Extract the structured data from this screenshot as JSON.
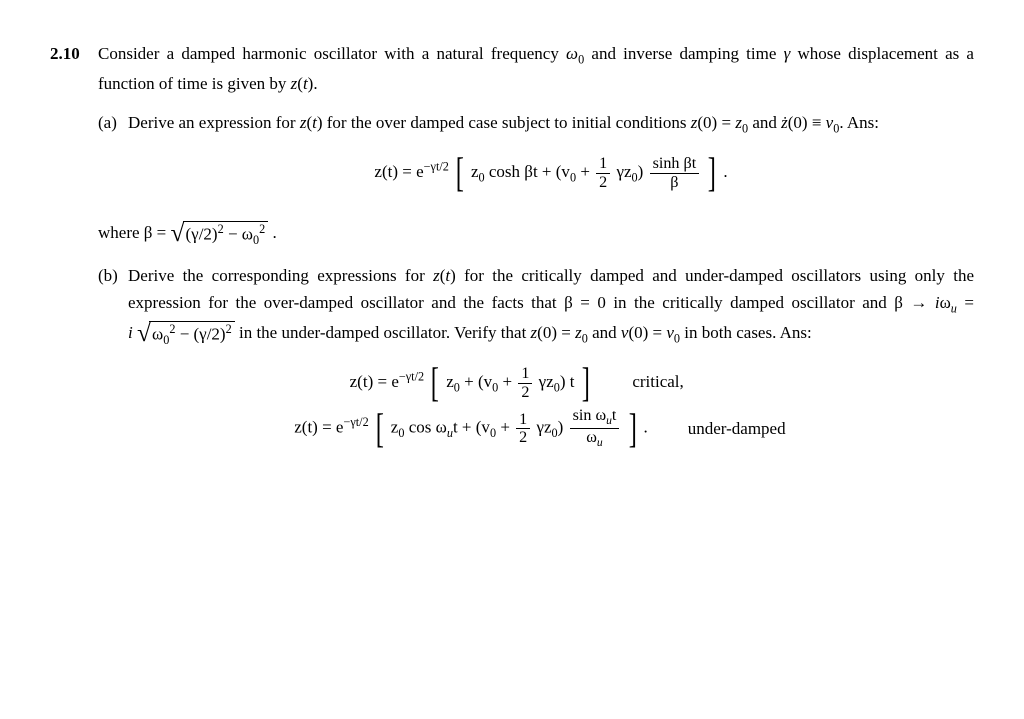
{
  "problem": {
    "number": "2.10",
    "intro": "Consider a damped harmonic oscillator with a natural frequency ω₀ and inverse damping time γ whose displacement as a function of time is given by z(t).",
    "parts": {
      "a": {
        "label": "(a)",
        "text": "Derive an expression for z(t) for the over damped case subject to initial conditions z(0) = z₀ and ż(0) ≡ v₀. Ans:",
        "equation_html": "z(t) = e<span class='sup'>−γt/2</span> <span class='bigbracket'>[</span> z<span class='sub'>0</span> cosh βt + (v<span class='sub'>0</span> + <span class='frac'><span class='num'>1</span><span class='den'>2</span></span> γz<span class='sub'>0</span>) <span class='frac'><span class='num'>sinh βt</span><span class='den'>β</span></span> <span class='bigbracket'>]</span> .",
        "where_html": "where β = <span class='sqrt'><span class='sqrt-sym'>√</span><span class='sqrt-body'>(γ/2)<span class='sup'>2</span> − ω<span class='sub'>0</span><span class='sup'>2</span></span></span> ."
      },
      "b": {
        "label": "(b)",
        "text_html": "Derive the corresponding expressions for <span class='it'>z</span>(<span class='it'>t</span>) for the critically damped and under-damped oscillators using only the expression for the over-damped oscillator and the facts that β = 0 in the critically damped oscillator and β → <span class='it'>i</span>ω<span class='sub it'>u</span> = <span class='nowrap'><span class='it'>i</span> <span class='sqrt'><span class='sqrt-sym'>√</span><span class='sqrt-body'>ω<span class='sub'>0</span><span class='sup'>2</span> − (γ/2)<span class='sup'>2</span></span></span></span> in the under-damped oscillator. Verify that <span class='it'>z</span>(0) = <span class='it'>z</span><span class='sub'>0</span> and <span class='it'>v</span>(0) = <span class='it'>v</span><span class='sub'>0</span> in both cases. Ans:",
        "critical_html": "z(t) = e<span class='sup'>−γt/2</span> <span class='bigbracket'>[</span> z<span class='sub'>0</span> + (v<span class='sub'>0</span> + <span class='frac'><span class='num'>1</span><span class='den'>2</span></span> γz<span class='sub'>0</span>) t <span class='bigbracket'>]</span>",
        "critical_label": "critical,",
        "under_html": "z(t) = e<span class='sup'>−γt/2</span> <span class='bigbracket'>[</span> z<span class='sub'>0</span> cos ω<span class='sub it'>u</span>t + (v<span class='sub'>0</span> + <span class='frac'><span class='num'>1</span><span class='den'>2</span></span> γz<span class='sub'>0</span>) <span class='frac'><span class='num'>sin ω<span class=\"sub it\">u</span>t</span><span class='den'>ω<span class=\"sub it\">u</span></span></span> <span class='bigbracket'>]</span> .",
        "under_label": "under-damped"
      }
    }
  },
  "style": {
    "fontsize_body": 17,
    "fontsize_sub": 12,
    "color_text": "#000000",
    "color_bg": "#ffffff",
    "font_family": "Georgia, Times New Roman, serif"
  }
}
